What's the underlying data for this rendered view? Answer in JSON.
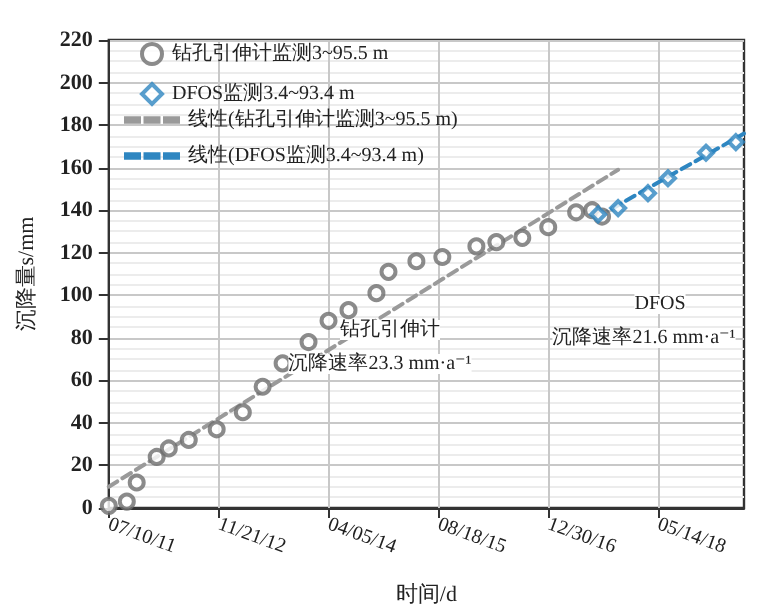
{
  "chart_data": {
    "type": "scatter",
    "xlabel": "时间/d",
    "ylabel": "沉降量s/mm",
    "series": [
      {
        "name": "钻孔引伸计监测3~95.5 m",
        "marker": "circle",
        "color": "#6e6e6e",
        "x": [
          "2011-07-10",
          "2011-09-30",
          "2011-11-14",
          "2012-02-13",
          "2012-04-08",
          "2012-07-08",
          "2012-11-12",
          "2013-03-11",
          "2013-06-09",
          "2013-09-08",
          "2014-01-04",
          "2014-04-05",
          "2014-07-05",
          "2014-11-09",
          "2015-01-03",
          "2015-05-10",
          "2015-09-05",
          "2016-02-07",
          "2016-05-08",
          "2016-09-03",
          "2016-12-30",
          "2017-05-06",
          "2017-07-18",
          "2017-09-01"
        ],
        "values": [
          1,
          3,
          12,
          24,
          28,
          32,
          37,
          45,
          57,
          68,
          78,
          88,
          93,
          101,
          111,
          116,
          118,
          123,
          125,
          127,
          132,
          139,
          140,
          137
        ]
      },
      {
        "name": "DFOS监测3.4~93.4 m",
        "marker": "diamond",
        "color": "#2e86c1",
        "x": [
          "2017-08-14",
          "2017-11-13",
          "2018-03-29",
          "2018-06-28",
          "2018-12-18",
          "2019-05-03"
        ],
        "values": [
          138,
          141,
          148,
          155,
          167,
          172
        ]
      },
      {
        "name": "线性(钻孔引伸计监测3~95.5 m)",
        "type": "line",
        "marker": "none",
        "line_style": "dashed",
        "color": "#9a9a9a",
        "x": [
          "2011-07-10",
          "2017-11-13"
        ],
        "values": [
          10,
          159
        ]
      },
      {
        "name": "线性(DFOS监测3.4~93.4 m)",
        "type": "line",
        "marker": "none",
        "line_style": "dashed",
        "color": "#2e86c1",
        "x": [
          "2017-08-14",
          "2019-06-09"
        ],
        "values": [
          137,
          176
        ]
      }
    ],
    "annotations": [
      "钻孔引伸计",
      "沉降速率23.3 mm·a⁻¹",
      "DFOS",
      "沉降速率21.6 mm·a⁻¹"
    ],
    "xlim": [
      "2011-07-10",
      "2019-06-09"
    ],
    "xticks": [
      {
        "value": "2011-07-10",
        "label": "07/10/11"
      },
      {
        "value": "2012-11-21",
        "label": "11/21/12"
      },
      {
        "value": "2014-04-05",
        "label": "04/05/14"
      },
      {
        "value": "2015-08-18",
        "label": "08/18/15"
      },
      {
        "value": "2016-12-30",
        "label": "12/30/16"
      },
      {
        "value": "2018-05-14",
        "label": "05/14/18"
      }
    ],
    "ylim": [
      0,
      220
    ],
    "yticks": [
      0,
      20,
      40,
      60,
      80,
      100,
      120,
      140,
      160,
      180,
      200,
      220
    ],
    "grid": true,
    "legend": "top left"
  }
}
